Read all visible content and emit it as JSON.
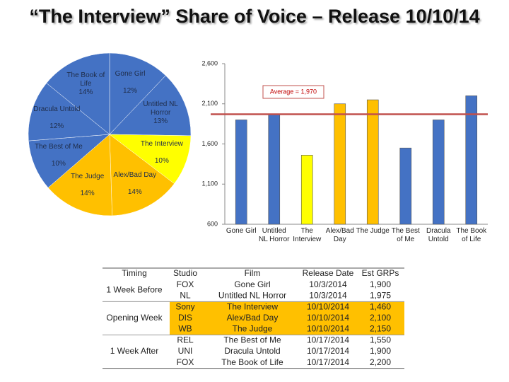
{
  "title": "“The Interview” Share of Voice – Release 10/10/14",
  "chart_data": [
    {
      "type": "pie",
      "categories": [
        "Gone Girl",
        "Untitled NL Horror",
        "The Interview",
        "Alex/Bad Day",
        "The Judge",
        "The Best of Me",
        "Dracula Untold",
        "The Book of Life"
      ],
      "values": [
        12,
        13,
        10,
        14,
        14,
        10,
        12,
        14
      ],
      "value_labels": [
        "12%",
        "13%",
        "10%",
        "14%",
        "14%",
        "10%",
        "12%",
        "14%"
      ],
      "colors": [
        "#4472c4",
        "#4472c4",
        "#ffff00",
        "#ffc000",
        "#ffc000",
        "#4472c4",
        "#4472c4",
        "#4472c4"
      ]
    },
    {
      "type": "bar",
      "categories": [
        "Gone Girl",
        "Untitled NL Horror",
        "The Interview",
        "Alex/Bad Day",
        "The Judge",
        "The Best of Me",
        "Dracula Untold",
        "The Book of Life"
      ],
      "values": [
        1900,
        1975,
        1460,
        2100,
        2150,
        1550,
        1900,
        2200
      ],
      "colors": [
        "#4472c4",
        "#4472c4",
        "#ffff00",
        "#ffc000",
        "#ffc000",
        "#4472c4",
        "#4472c4",
        "#4472c4"
      ],
      "ylim": [
        600,
        2600
      ],
      "yticks": [
        600,
        {
          "value": 1100,
          "label": "1,100"
        },
        {
          "value": 1600,
          "label": "1,600"
        },
        {
          "value": 2100,
          "label": "2,100"
        },
        {
          "value": 2600,
          "label": "2,600"
        }
      ],
      "average": 1970,
      "average_label": "Average = 1,970",
      "average_color": "#c0504d"
    }
  ],
  "table": {
    "header": [
      "Timing",
      "Studio",
      "Film",
      "Release Date",
      "Est GRPs"
    ],
    "timing": [
      "1 Week Before",
      "Opening Week",
      "1 Week After"
    ],
    "rows": [
      [
        "FOX",
        "Gone Girl",
        "10/3/2014",
        "1,900"
      ],
      [
        "NL",
        "Untitled NL Horror",
        "10/3/2014",
        "1,975"
      ],
      [
        "Sony",
        "The Interview",
        "10/10/2014",
        "1,460"
      ],
      [
        "DIS",
        "Alex/Bad Day",
        "10/10/2014",
        "2,100"
      ],
      [
        "WB",
        "The Judge",
        "10/10/2014",
        "2,150"
      ],
      [
        "REL",
        "The Best of Me",
        "10/17/2014",
        "1,550"
      ],
      [
        "UNI",
        "Dracula Untold",
        "10/17/2014",
        "1,900"
      ],
      [
        "FOX",
        "The Book of Life",
        "10/17/2014",
        "2,200"
      ]
    ]
  }
}
